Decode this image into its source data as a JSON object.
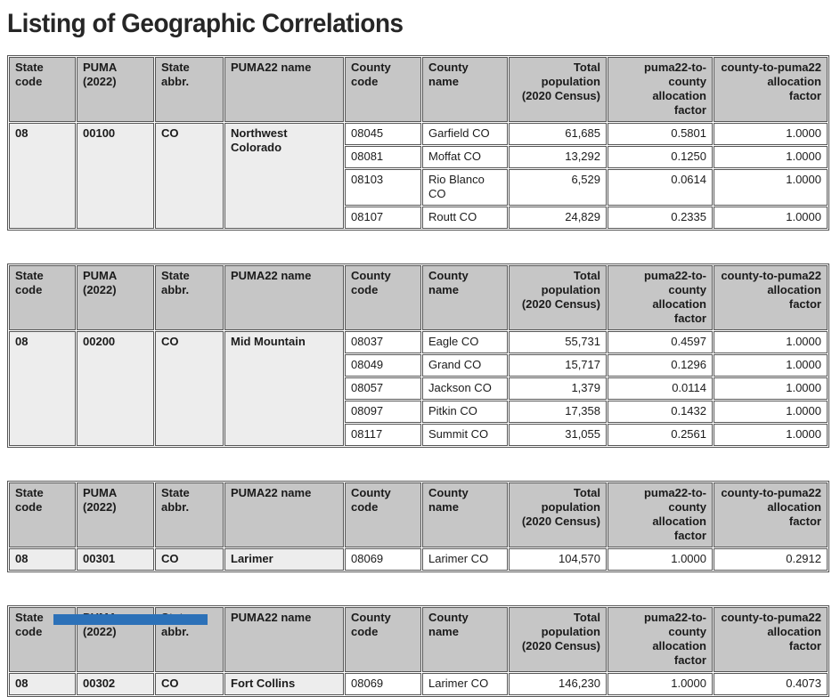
{
  "page_title": "Listing of Geographic Correlations",
  "colors": {
    "header_bg": "#c6c6c6",
    "group_bg": "#ededed",
    "border": "#565656",
    "blue_bar": "#2c71b8"
  },
  "columns": [
    {
      "lines": [
        "State code"
      ]
    },
    {
      "lines": [
        "PUMA (2022)"
      ]
    },
    {
      "lines": [
        "State abbr."
      ]
    },
    {
      "lines": [
        "PUMA22 name"
      ]
    },
    {
      "lines": [
        "County code"
      ]
    },
    {
      "lines": [
        "County name"
      ]
    },
    {
      "lines": [
        "Total population",
        "(2020 Census)"
      ]
    },
    {
      "lines": [
        "puma22-to-county",
        "allocation",
        "factor"
      ]
    },
    {
      "lines": [
        "county-to-puma22",
        "allocation",
        "factor"
      ]
    }
  ],
  "tables": [
    {
      "state_code": "08",
      "puma": "00100",
      "state_abbr": "CO",
      "puma22_name": "Northwest Colorado",
      "rows": [
        {
          "county_code": "08045",
          "county_name": "Garfield CO",
          "total_population": "61,685",
          "puma22_to_county": "0.5801",
          "county_to_puma22": "1.0000"
        },
        {
          "county_code": "08081",
          "county_name": "Moffat CO",
          "total_population": "13,292",
          "puma22_to_county": "0.1250",
          "county_to_puma22": "1.0000"
        },
        {
          "county_code": "08103",
          "county_name": "Rio Blanco CO",
          "total_population": "6,529",
          "puma22_to_county": "0.0614",
          "county_to_puma22": "1.0000"
        },
        {
          "county_code": "08107",
          "county_name": "Routt CO",
          "total_population": "24,829",
          "puma22_to_county": "0.2335",
          "county_to_puma22": "1.0000"
        }
      ]
    },
    {
      "state_code": "08",
      "puma": "00200",
      "state_abbr": "CO",
      "puma22_name": "Mid Mountain",
      "rows": [
        {
          "county_code": "08037",
          "county_name": "Eagle CO",
          "total_population": "55,731",
          "puma22_to_county": "0.4597",
          "county_to_puma22": "1.0000"
        },
        {
          "county_code": "08049",
          "county_name": "Grand CO",
          "total_population": "15,717",
          "puma22_to_county": "0.1296",
          "county_to_puma22": "1.0000"
        },
        {
          "county_code": "08057",
          "county_name": "Jackson CO",
          "total_population": "1,379",
          "puma22_to_county": "0.0114",
          "county_to_puma22": "1.0000"
        },
        {
          "county_code": "08097",
          "county_name": "Pitkin CO",
          "total_population": "17,358",
          "puma22_to_county": "0.1432",
          "county_to_puma22": "1.0000"
        },
        {
          "county_code": "08117",
          "county_name": "Summit CO",
          "total_population": "31,055",
          "puma22_to_county": "0.2561",
          "county_to_puma22": "1.0000"
        }
      ]
    },
    {
      "state_code": "08",
      "puma": "00301",
      "state_abbr": "CO",
      "puma22_name": "Larimer",
      "rows": [
        {
          "county_code": "08069",
          "county_name": "Larimer CO",
          "total_population": "104,570",
          "puma22_to_county": "1.0000",
          "county_to_puma22": "0.2912"
        }
      ]
    },
    {
      "state_code": "08",
      "puma": "00302",
      "state_abbr": "CO",
      "puma22_name": "Fort Collins",
      "rows": [
        {
          "county_code": "08069",
          "county_name": "Larimer CO",
          "total_population": "146,230",
          "puma22_to_county": "1.0000",
          "county_to_puma22": "0.4073"
        }
      ]
    }
  ]
}
